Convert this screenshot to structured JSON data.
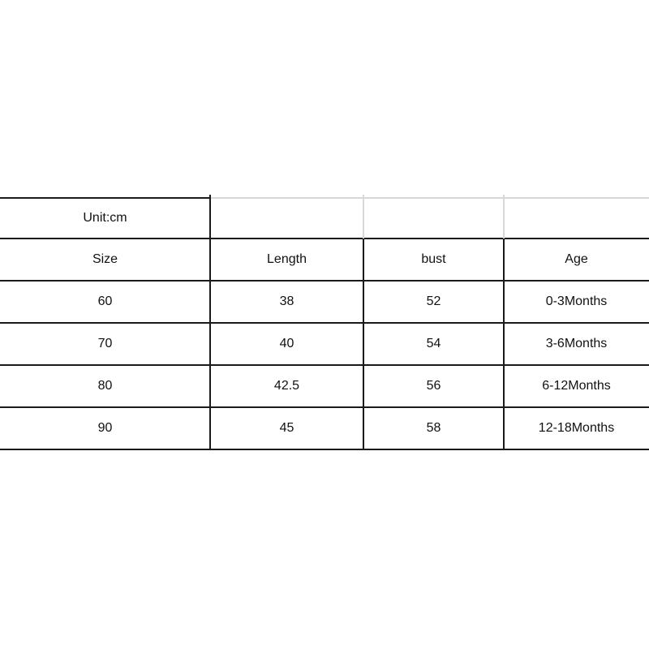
{
  "unit_label": "Unit:cm",
  "headers": [
    "Size",
    "Length",
    "bust",
    "Age"
  ],
  "rows": [
    [
      "60",
      "38",
      "52",
      "0-3Months"
    ],
    [
      "70",
      "40",
      "54",
      "3-6Months"
    ],
    [
      "80",
      "42.5",
      "56",
      "6-12Months"
    ],
    [
      "90",
      "45",
      "58",
      "12-18Months"
    ]
  ]
}
